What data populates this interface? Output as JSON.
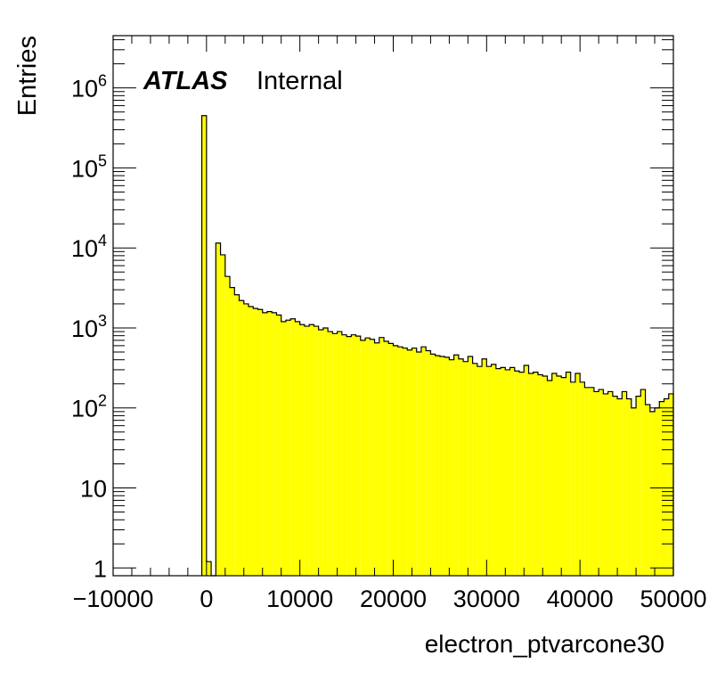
{
  "chart_data": {
    "type": "histogram",
    "xlabel": "electron_ptvarcone30",
    "ylabel": "Entries",
    "atlas_label": "ATLAS",
    "atlas_sublabel": "Internal",
    "xlim": [
      -10000,
      50000
    ],
    "ylim": [
      0.8,
      4500000
    ],
    "log_y": true,
    "bin_width": 500,
    "x_ticks": [
      -10000,
      0,
      10000,
      20000,
      30000,
      40000,
      50000
    ],
    "x_tick_labels": [
      "−10000",
      "0",
      "10000",
      "20000",
      "30000",
      "40000",
      "50000"
    ],
    "y_ticks": [
      {
        "value": 1,
        "base": "1",
        "exp": ""
      },
      {
        "value": 10,
        "base": "10",
        "exp": ""
      },
      {
        "value": 100,
        "base": "10",
        "exp": "2"
      },
      {
        "value": 1000,
        "base": "10",
        "exp": "3"
      },
      {
        "value": 10000,
        "base": "10",
        "exp": "4"
      },
      {
        "value": 100000,
        "base": "10",
        "exp": "5"
      },
      {
        "value": 1000000,
        "base": "10",
        "exp": "6"
      }
    ],
    "fill_color": "#ffff00",
    "line_color": "#000000",
    "bin_low_edges": [
      -500,
      0,
      500,
      1000,
      1500,
      2000,
      2500,
      3000,
      3500,
      4000,
      4500,
      5000,
      5500,
      6000,
      6500,
      7000,
      7500,
      8000,
      8500,
      9000,
      9500,
      10000,
      10500,
      11000,
      11500,
      12000,
      12500,
      13000,
      13500,
      14000,
      14500,
      15000,
      15500,
      16000,
      16500,
      17000,
      17500,
      18000,
      18500,
      19000,
      19500,
      20000,
      20500,
      21000,
      21500,
      22000,
      22500,
      23000,
      23500,
      24000,
      24500,
      25000,
      25500,
      26000,
      26500,
      27000,
      27500,
      28000,
      28500,
      29000,
      29500,
      30000,
      30500,
      31000,
      31500,
      32000,
      32500,
      33000,
      33500,
      34000,
      34500,
      35000,
      35500,
      36000,
      36500,
      37000,
      37500,
      38000,
      38500,
      39000,
      39500,
      40000,
      40500,
      41000,
      41500,
      42000,
      42500,
      43000,
      43500,
      44000,
      44500,
      45000,
      45500,
      46000,
      46500,
      47000,
      47500,
      48000,
      48500,
      49000,
      49500
    ],
    "values": [
      450000,
      1.2,
      0,
      11500,
      8200,
      4400,
      3200,
      2600,
      2200,
      2000,
      1850,
      1750,
      1700,
      1550,
      1600,
      1550,
      1450,
      1200,
      1250,
      1300,
      1200,
      1100,
      1050,
      1100,
      1050,
      950,
      1000,
      900,
      850,
      900,
      820,
      780,
      820,
      790,
      700,
      750,
      720,
      650,
      760,
      680,
      640,
      600,
      580,
      560,
      530,
      560,
      500,
      580,
      520,
      470,
      450,
      440,
      430,
      400,
      460,
      410,
      380,
      440,
      360,
      330,
      410,
      330,
      350,
      310,
      320,
      300,
      320,
      290,
      280,
      340,
      270,
      280,
      260,
      250,
      220,
      270,
      250,
      240,
      280,
      210,
      270,
      210,
      180,
      180,
      160,
      170,
      150,
      160,
      140,
      130,
      160,
      130,
      100,
      140,
      170,
      110,
      90,
      100,
      120,
      130,
      150
    ]
  }
}
